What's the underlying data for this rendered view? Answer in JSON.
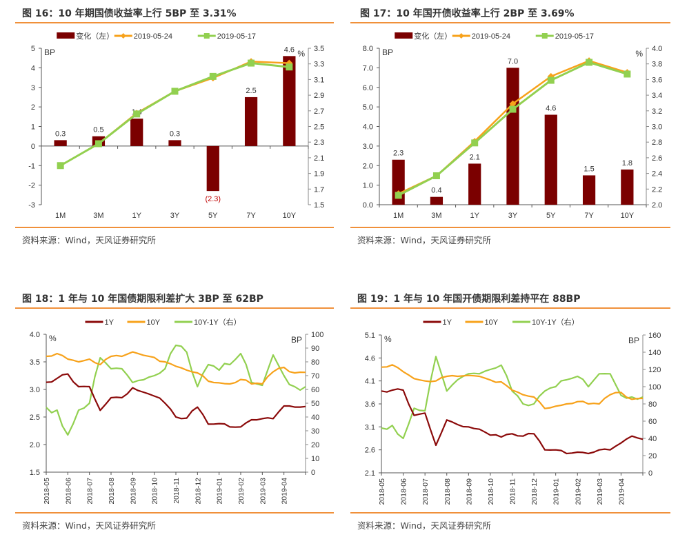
{
  "colors": {
    "bar": "#7b0000",
    "orange": "#f7a21b",
    "green": "#92d050",
    "line1y": "#8b0a0a",
    "rule": "#f0903a",
    "neg_label": "#c00000"
  },
  "panels": [
    {
      "title": "图 16：10 年期国债收益率上行 5BP 至 3.31%",
      "source": "资料来源：Wind，天风证券研究所"
    },
    {
      "title": "图 17：10 年国开债收益率上行 2BP 至 3.69%",
      "source": "资料来源：Wind，天风证券研究所"
    },
    {
      "title": "图 18：1 年与 10 年国债期限利差扩大 3BP 至 62BP",
      "source": "资料来源：Wind，天风证券研究所"
    },
    {
      "title": "图 19：1 年与 10 年国开债期限利差持平在 88BP",
      "source": "资料来源：Wind，天风证券研究所"
    }
  ],
  "chart_data": [
    {
      "type": "bar+line",
      "categories": [
        "1M",
        "3M",
        "1Y",
        "3Y",
        "5Y",
        "7Y",
        "10Y"
      ],
      "left_unit": "BP",
      "right_unit": "%",
      "left_ylim": [
        -3,
        5
      ],
      "left_ticks": [
        "-3",
        "-2",
        "-1",
        "0",
        "1",
        "2",
        "3",
        "4",
        "5"
      ],
      "right_ylim": [
        1.5,
        3.5
      ],
      "right_ticks": [
        "1.5",
        "1.7",
        "1.9",
        "2.1",
        "2.3",
        "2.5",
        "2.7",
        "2.9",
        "3.1",
        "3.3",
        "3.5"
      ],
      "bars": {
        "name": "变化（左）",
        "values": [
          0.3,
          0.5,
          1.4,
          0.3,
          -2.3,
          2.5,
          4.6
        ],
        "labels": [
          "0.3",
          "0.5",
          "1.4",
          "0.3",
          "(2.3)",
          "2.5",
          "4.6"
        ]
      },
      "series": [
        {
          "name": "2019-05-24",
          "values": [
            2.0,
            2.28,
            2.67,
            2.95,
            3.12,
            3.33,
            3.31
          ]
        },
        {
          "name": "2019-05-17",
          "values": [
            2.0,
            2.28,
            2.66,
            2.95,
            3.14,
            3.31,
            3.26
          ]
        }
      ]
    },
    {
      "type": "bar+line",
      "categories": [
        "1M",
        "3M",
        "1Y",
        "3Y",
        "5Y",
        "7Y",
        "10Y"
      ],
      "left_unit": "BP",
      "right_unit": "%",
      "left_ylim": [
        0,
        8
      ],
      "left_ticks": [
        "0.0",
        "1.0",
        "2.0",
        "3.0",
        "4.0",
        "5.0",
        "6.0",
        "7.0",
        "8.0"
      ],
      "right_ylim": [
        2.0,
        4.0
      ],
      "right_ticks": [
        "2.0",
        "2.2",
        "2.4",
        "2.6",
        "2.8",
        "3.0",
        "3.2",
        "3.4",
        "3.6",
        "3.8",
        "4.0"
      ],
      "bars": {
        "name": "变化（左）",
        "values": [
          2.3,
          0.4,
          2.1,
          7.0,
          4.6,
          1.5,
          1.8
        ],
        "labels": [
          "2.3",
          "0.4",
          "2.1",
          "7.0",
          "4.6",
          "1.5",
          "1.8"
        ]
      },
      "series": [
        {
          "name": "2019-05-24",
          "values": [
            2.14,
            2.37,
            2.81,
            3.29,
            3.64,
            3.84,
            3.69
          ]
        },
        {
          "name": "2019-05-17",
          "values": [
            2.12,
            2.37,
            2.79,
            3.22,
            3.59,
            3.82,
            3.67
          ]
        }
      ]
    },
    {
      "type": "line",
      "x_ticks": [
        "2018-05",
        "2018-06",
        "2018-07",
        "2018-08",
        "2018-09",
        "2018-10",
        "2018-11",
        "2018-12",
        "2019-01",
        "2019-02",
        "2019-03",
        "2019-04"
      ],
      "left_unit": "%",
      "right_unit": "BP",
      "left_ylim": [
        1.5,
        4.0
      ],
      "left_ticks": [
        "1.5",
        "2.0",
        "2.5",
        "3.0",
        "3.5",
        "4.0"
      ],
      "right_ylim": [
        0,
        100
      ],
      "right_ticks": [
        "0",
        "10",
        "20",
        "30",
        "40",
        "50",
        "60",
        "70",
        "80",
        "90",
        "100"
      ],
      "x_step_months": 0.5,
      "series": [
        {
          "name": "1Y",
          "axis": "left",
          "values": [
            3.13,
            3.2,
            3.28,
            3.05,
            3.05,
            2.62,
            2.85,
            2.85,
            3.03,
            2.95,
            2.88,
            2.75,
            2.5,
            2.48,
            2.68,
            2.37,
            2.38,
            2.32,
            2.32,
            2.45,
            2.47,
            2.47,
            2.7,
            2.68,
            2.69
          ]
        },
        {
          "name": "10Y",
          "axis": "left",
          "values": [
            3.6,
            3.65,
            3.55,
            3.5,
            3.55,
            3.45,
            3.6,
            3.6,
            3.68,
            3.62,
            3.58,
            3.5,
            3.42,
            3.35,
            3.3,
            3.15,
            3.12,
            3.1,
            3.18,
            3.1,
            3.1,
            3.32,
            3.4,
            3.3,
            3.31
          ]
        },
        {
          "name": "10Y-1Y（右）",
          "axis": "right",
          "values": [
            47,
            45,
            27,
            45,
            50,
            83,
            75,
            75,
            65,
            67,
            70,
            75,
            92,
            87,
            62,
            78,
            74,
            78,
            86,
            65,
            63,
            85,
            70,
            62,
            62
          ]
        }
      ]
    },
    {
      "type": "line",
      "x_ticks": [
        "2018-05",
        "2018-06",
        "2018-07",
        "2018-08",
        "2018-09",
        "2018-10",
        "2018-11",
        "2018-12",
        "2019-01",
        "2019-02",
        "2019-03",
        "2019-04"
      ],
      "left_unit": "%",
      "right_unit": "BP",
      "left_ylim": [
        2.1,
        5.1
      ],
      "left_ticks": [
        "2.1",
        "2.6",
        "3.1",
        "3.6",
        "4.1",
        "4.6",
        "5.1"
      ],
      "right_ylim": [
        0,
        160
      ],
      "right_ticks": [
        "0",
        "20",
        "40",
        "60",
        "80",
        "100",
        "120",
        "140",
        "160"
      ],
      "x_step_months": 0.5,
      "series": [
        {
          "name": "1Y",
          "axis": "left",
          "values": [
            3.88,
            3.9,
            3.9,
            3.35,
            3.4,
            2.7,
            3.25,
            3.15,
            3.1,
            3.05,
            2.92,
            2.88,
            2.95,
            2.9,
            2.95,
            2.6,
            2.6,
            2.52,
            2.55,
            2.52,
            2.6,
            2.6,
            2.75,
            2.9,
            2.83
          ]
        },
        {
          "name": "10Y",
          "axis": "left",
          "values": [
            4.4,
            4.45,
            4.3,
            4.15,
            4.1,
            4.1,
            4.2,
            4.2,
            4.22,
            4.2,
            4.12,
            4.08,
            3.9,
            3.8,
            3.75,
            3.5,
            3.55,
            3.6,
            3.65,
            3.6,
            3.6,
            3.8,
            3.85,
            3.7,
            3.72
          ]
        },
        {
          "name": "10Y-1Y（右）",
          "axis": "right",
          "values": [
            52,
            55,
            40,
            75,
            72,
            135,
            95,
            108,
            115,
            115,
            120,
            125,
            95,
            80,
            80,
            95,
            100,
            108,
            112,
            100,
            115,
            115,
            90,
            88,
            88
          ]
        }
      ]
    }
  ]
}
